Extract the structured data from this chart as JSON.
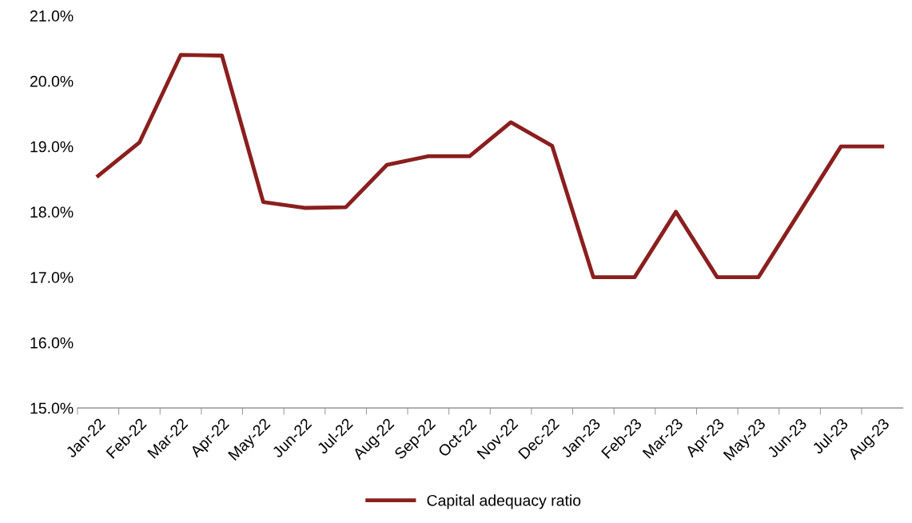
{
  "chart_data": {
    "type": "line",
    "categories": [
      "Jan-22",
      "Feb-22",
      "Mar-22",
      "Apr-22",
      "May-22",
      "Jun-22",
      "Jul-22",
      "Aug-22",
      "Sep-22",
      "Oct-22",
      "Nov-22",
      "Dec-22",
      "Jan-23",
      "Feb-23",
      "Mar-23",
      "Apr-23",
      "May-23",
      "Jun-23",
      "Jul-23",
      "Aug-23"
    ],
    "series": [
      {
        "name": "Capital adequacy ratio",
        "color": "#8b1e1e",
        "values": [
          18.55,
          19.06,
          20.4,
          20.39,
          18.15,
          18.06,
          18.07,
          18.72,
          18.85,
          18.85,
          19.37,
          19.01,
          17.0,
          17.0,
          18.0,
          17.0,
          17.0,
          18.0,
          19.0,
          19.0
        ]
      }
    ],
    "ylim": [
      15,
      21
    ],
    "yticks": [
      {
        "value": 15,
        "label": "15.0%"
      },
      {
        "value": 16,
        "label": "16.0%"
      },
      {
        "value": 17,
        "label": "17.0%"
      },
      {
        "value": 18,
        "label": "18.0%"
      },
      {
        "value": 19,
        "label": "19.0%"
      },
      {
        "value": 20,
        "label": "20.0%"
      },
      {
        "value": 21,
        "label": "21.0%"
      }
    ],
    "grid": false,
    "legend": "bottom",
    "marker": "none",
    "line_style": "solid"
  }
}
